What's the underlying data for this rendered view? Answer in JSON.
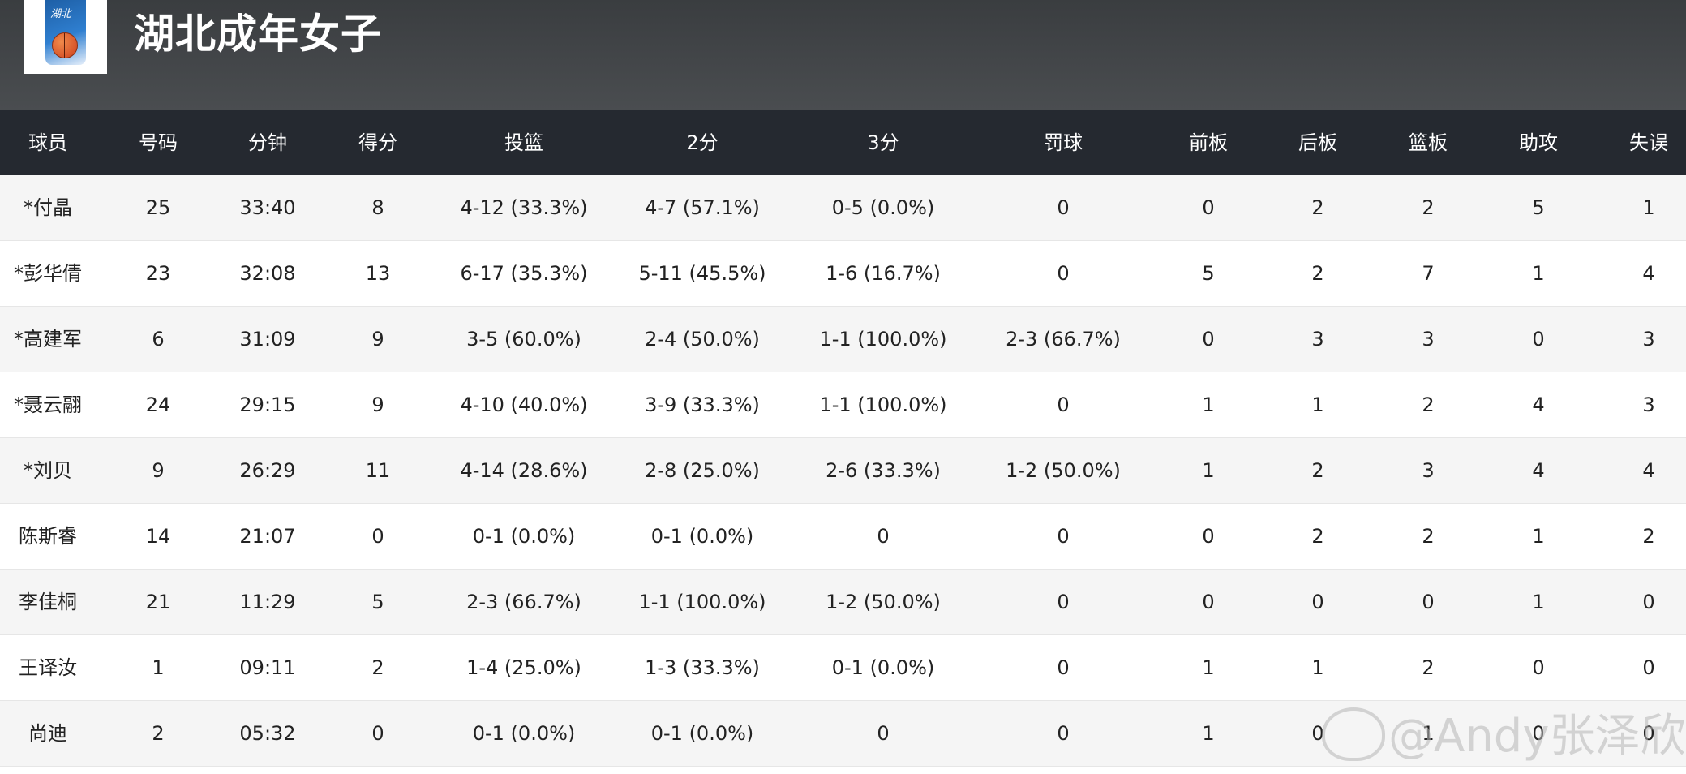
{
  "team": {
    "title": "湖北成年女子",
    "logo_text": "湖北",
    "banner_color": "#42454a",
    "header_color": "#252930"
  },
  "columns": [
    "球员",
    "号码",
    "分钟",
    "得分",
    "投篮",
    "2分",
    "3分",
    "罚球",
    "前板",
    "后板",
    "篮板",
    "助攻",
    "失误"
  ],
  "rows": [
    [
      "*付晶",
      "25",
      "33:40",
      "8",
      "4-12 (33.3%)",
      "4-7 (57.1%)",
      "0-5 (0.0%)",
      "0",
      "0",
      "2",
      "2",
      "5",
      "1"
    ],
    [
      "*彭华倩",
      "23",
      "32:08",
      "13",
      "6-17 (35.3%)",
      "5-11 (45.5%)",
      "1-6 (16.7%)",
      "0",
      "5",
      "2",
      "7",
      "1",
      "4"
    ],
    [
      "*高建军",
      "6",
      "31:09",
      "9",
      "3-5 (60.0%)",
      "2-4 (50.0%)",
      "1-1 (100.0%)",
      "2-3 (66.7%)",
      "0",
      "3",
      "3",
      "0",
      "3"
    ],
    [
      "*聂云翮",
      "24",
      "29:15",
      "9",
      "4-10 (40.0%)",
      "3-9 (33.3%)",
      "1-1 (100.0%)",
      "0",
      "1",
      "1",
      "2",
      "4",
      "3"
    ],
    [
      "*刘贝",
      "9",
      "26:29",
      "11",
      "4-14 (28.6%)",
      "2-8 (25.0%)",
      "2-6 (33.3%)",
      "1-2 (50.0%)",
      "1",
      "2",
      "3",
      "4",
      "4"
    ],
    [
      "陈斯睿",
      "14",
      "21:07",
      "0",
      "0-1 (0.0%)",
      "0-1 (0.0%)",
      "0",
      "0",
      "0",
      "2",
      "2",
      "1",
      "2"
    ],
    [
      "李佳桐",
      "21",
      "11:29",
      "5",
      "2-3 (66.7%)",
      "1-1 (100.0%)",
      "1-2 (50.0%)",
      "0",
      "0",
      "0",
      "0",
      "1",
      "0"
    ],
    [
      "王译汝",
      "1",
      "09:11",
      "2",
      "1-4 (25.0%)",
      "1-3 (33.3%)",
      "0-1 (0.0%)",
      "0",
      "1",
      "1",
      "2",
      "0",
      "0"
    ],
    [
      "尚迪",
      "2",
      "05:32",
      "0",
      "0-1 (0.0%)",
      "0-1 (0.0%)",
      "0",
      "0",
      "1",
      "0",
      "1",
      "0",
      "0"
    ]
  ],
  "watermark": "@Andy张泽欣"
}
